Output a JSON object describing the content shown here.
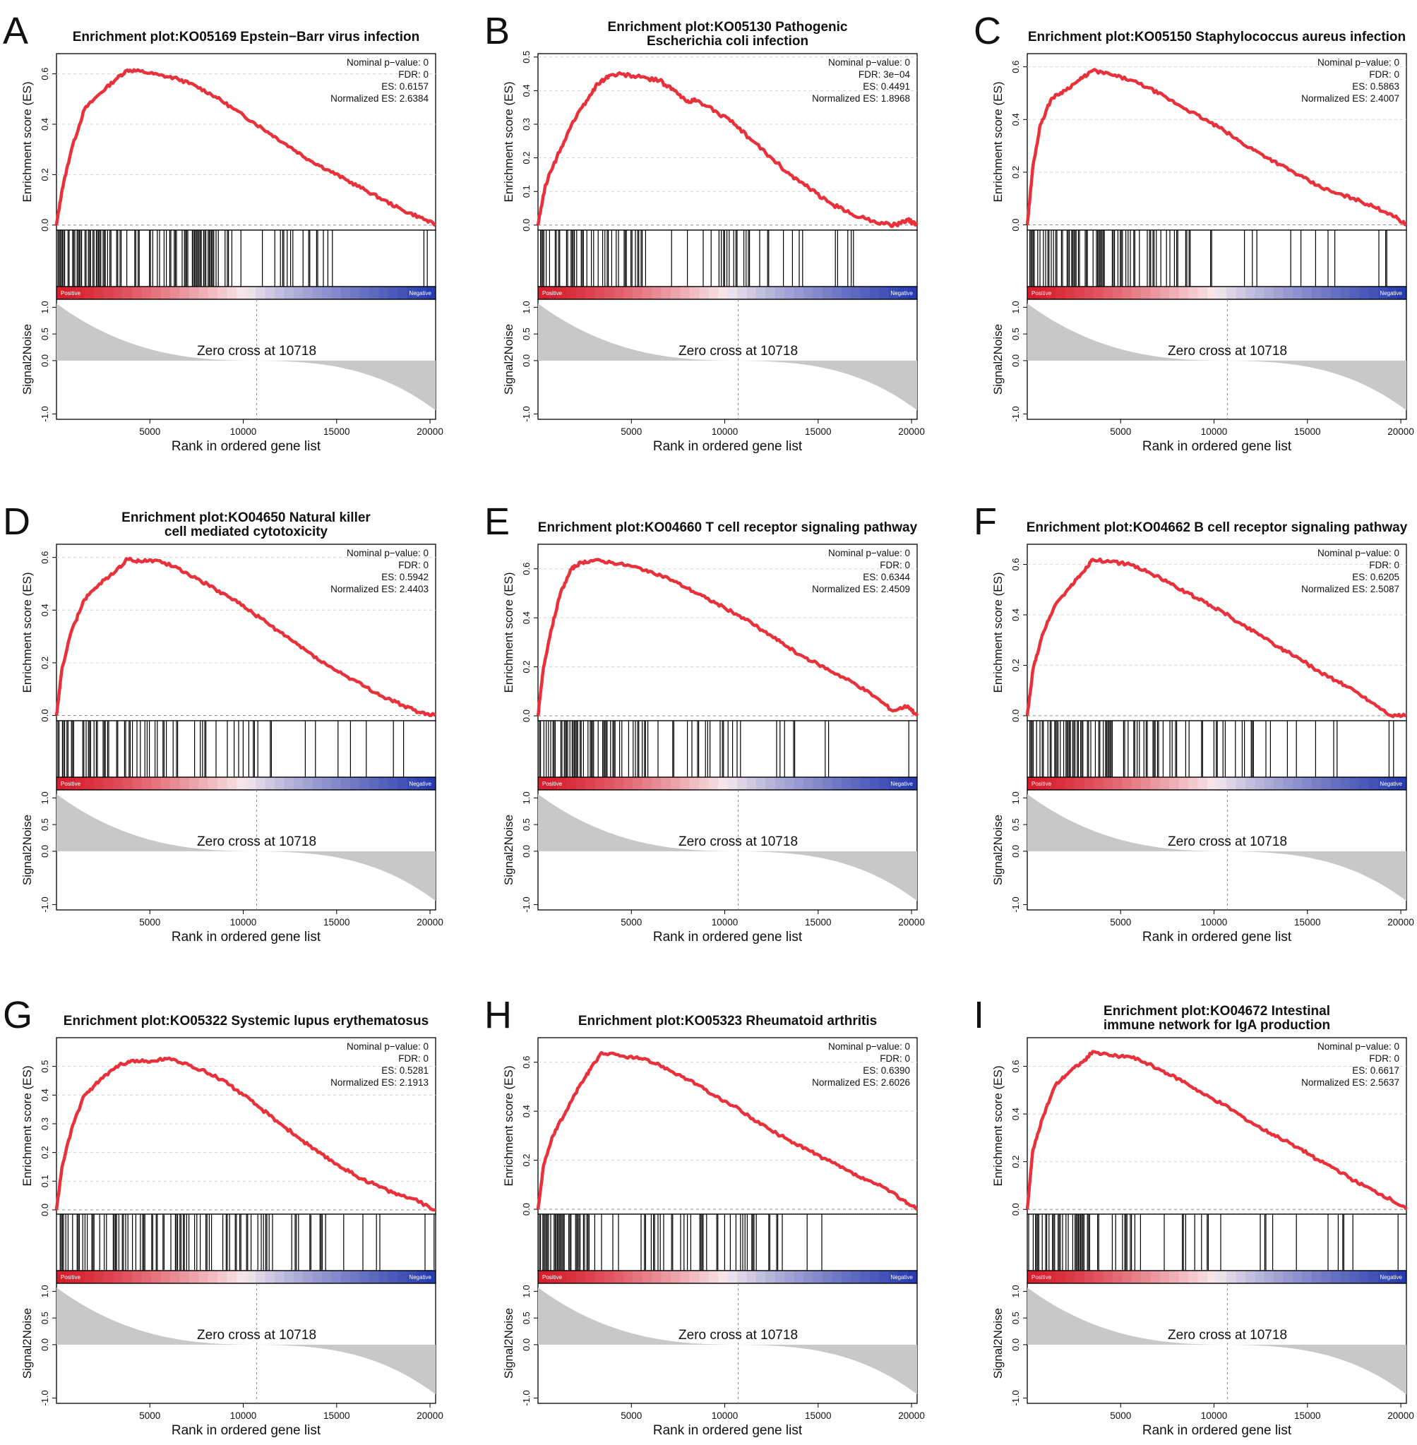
{
  "figure": {
    "zero_cross_label": "Zero cross at 10718",
    "x_axis_label": "Rank in ordered gene list",
    "es_axis_label": "Enrichment score (ES)",
    "metric_axis_label": "Signal2Noise",
    "positive_label": "Positive",
    "negative_label": "Negative",
    "x_ticks": [
      5000,
      10000,
      15000,
      20000
    ],
    "metric_ticks": [
      "1.0",
      "0.5",
      "0.0",
      "-1.0"
    ],
    "curve_color": "#e8313a",
    "metric_fill_color": "#c8c8c8"
  },
  "chart_data": [
    {
      "panel": "A",
      "type": "line",
      "title": [
        "Enrichment plot:KO05169 Epstein−Barr virus infection"
      ],
      "stats": [
        "Nominal p−value: 0",
        "FDR: 0",
        "ES: 0.6157",
        "Normalized ES: 2.6384"
      ],
      "ylim": [
        -0.02,
        0.68
      ],
      "yticks": [
        "0.0",
        "0.2",
        "0.4",
        "0.6"
      ],
      "es_curve": {
        "x": [
          0,
          300,
          800,
          1500,
          2300,
          3200,
          3800,
          4500,
          5500,
          6500,
          7500,
          8500,
          9500,
          10500,
          11500,
          12500,
          13500,
          14500,
          15500,
          16500,
          17500,
          18500,
          19500,
          20300
        ],
        "y": [
          0.0,
          0.14,
          0.3,
          0.46,
          0.52,
          0.58,
          0.615,
          0.61,
          0.595,
          0.58,
          0.55,
          0.51,
          0.46,
          0.41,
          0.36,
          0.31,
          0.26,
          0.22,
          0.18,
          0.14,
          0.1,
          0.06,
          0.03,
          0.0
        ]
      },
      "hit_density": [
        0.95,
        0.55,
        0.8,
        0.2,
        0.35,
        0.1,
        0.04
      ],
      "xlim": [
        0,
        20300
      ],
      "x_ticks": [
        5000,
        10000,
        15000,
        20000
      ],
      "zero_cross": 10718
    },
    {
      "panel": "B",
      "type": "line",
      "title": [
        "Enrichment plot:KO05130 Pathogenic",
        "Escherichia coli infection"
      ],
      "stats": [
        "Nominal p−value: 0",
        "FDR: 3e−04",
        "ES: 0.4491",
        "Normalized ES: 1.8968"
      ],
      "ylim": [
        -0.015,
        0.51
      ],
      "yticks": [
        "0.0",
        "0.1",
        "0.2",
        "0.3",
        "0.4",
        "0.5"
      ],
      "es_curve": {
        "x": [
          0,
          400,
          1000,
          1800,
          2600,
          3200,
          3800,
          4500,
          5500,
          6500,
          7300,
          7900,
          8500,
          9500,
          10500,
          11500,
          12500,
          13500,
          14500,
          15500,
          16500,
          17500,
          18500,
          19200,
          19800,
          20300
        ],
        "y": [
          0.0,
          0.12,
          0.2,
          0.3,
          0.37,
          0.42,
          0.445,
          0.449,
          0.44,
          0.43,
          0.4,
          0.37,
          0.37,
          0.34,
          0.3,
          0.25,
          0.2,
          0.15,
          0.11,
          0.07,
          0.04,
          0.02,
          0.005,
          0.0,
          0.015,
          0.0
        ]
      },
      "hit_density": [
        0.9,
        0.6,
        0.1,
        0.55,
        0.3,
        0.15,
        0.05
      ],
      "xlim": [
        0,
        20300
      ],
      "x_ticks": [
        5000,
        10000,
        15000,
        20000
      ],
      "zero_cross": 10718
    },
    {
      "panel": "C",
      "type": "line",
      "title": [
        "Enrichment plot:KO05150 Staphylococcus aureus infection"
      ],
      "stats": [
        "Nominal p−value: 0",
        "FDR: 0",
        "ES: 0.5863",
        "Normalized ES: 2.4007"
      ],
      "ylim": [
        -0.02,
        0.65
      ],
      "yticks": [
        "0.0",
        "0.2",
        "0.4",
        "0.6"
      ],
      "es_curve": {
        "x": [
          0,
          300,
          700,
          1300,
          2000,
          2800,
          3500,
          4500,
          5500,
          6500,
          7500,
          8500,
          9500,
          10500,
          11500,
          12500,
          13500,
          14500,
          15500,
          16500,
          17500,
          18500,
          19500,
          20300
        ],
        "y": [
          0.0,
          0.22,
          0.38,
          0.48,
          0.51,
          0.55,
          0.586,
          0.57,
          0.55,
          0.52,
          0.48,
          0.44,
          0.4,
          0.36,
          0.31,
          0.27,
          0.23,
          0.19,
          0.15,
          0.12,
          0.1,
          0.07,
          0.04,
          0.0
        ]
      },
      "hit_density": [
        0.95,
        0.65,
        0.45,
        0.3,
        0.2,
        0.1,
        0.04
      ],
      "xlim": [
        0,
        20300
      ],
      "x_ticks": [
        5000,
        10000,
        15000,
        20000
      ],
      "zero_cross": 10718
    },
    {
      "panel": "D",
      "type": "line",
      "title": [
        "Enrichment plot:KO04650 Natural killer",
        "cell mediated cytotoxicity"
      ],
      "stats": [
        "Nominal p−value: 0",
        "FDR: 0",
        "ES: 0.5942",
        "Normalized ES: 2.4403"
      ],
      "ylim": [
        -0.02,
        0.65
      ],
      "yticks": [
        "0.0",
        "0.2",
        "0.4",
        "0.6"
      ],
      "es_curve": {
        "x": [
          0,
          300,
          800,
          1500,
          2300,
          3200,
          3800,
          4500,
          5300,
          6500,
          7500,
          8500,
          9500,
          10500,
          11500,
          12500,
          13500,
          14500,
          15500,
          16500,
          17500,
          18500,
          19500,
          20300
        ],
        "y": [
          0.0,
          0.18,
          0.32,
          0.44,
          0.5,
          0.55,
          0.594,
          0.585,
          0.59,
          0.56,
          0.52,
          0.48,
          0.44,
          0.39,
          0.34,
          0.29,
          0.24,
          0.19,
          0.15,
          0.11,
          0.07,
          0.04,
          0.01,
          0.0
        ]
      },
      "hit_density": [
        0.95,
        0.5,
        0.4,
        0.3,
        0.2,
        0.12,
        0.04
      ],
      "xlim": [
        0,
        20300
      ],
      "x_ticks": [
        5000,
        10000,
        15000,
        20000
      ],
      "zero_cross": 10718
    },
    {
      "panel": "E",
      "type": "line",
      "title": [
        "Enrichment plot:KO04660 T cell receptor signaling pathway"
      ],
      "stats": [
        "Nominal p−value: 0",
        "FDR: 0",
        "ES: 0.6344",
        "Normalized ES: 2.4509"
      ],
      "ylim": [
        -0.02,
        0.7
      ],
      "yticks": [
        "0.0",
        "0.2",
        "0.4",
        "0.6"
      ],
      "es_curve": {
        "x": [
          0,
          300,
          700,
          1200,
          1800,
          2300,
          3000,
          4000,
          5000,
          6000,
          7000,
          8000,
          9000,
          10000,
          11000,
          12000,
          13000,
          14000,
          15000,
          16000,
          17000,
          18000,
          19000,
          19800,
          20300
        ],
        "y": [
          0.0,
          0.2,
          0.35,
          0.5,
          0.6,
          0.625,
          0.634,
          0.625,
          0.61,
          0.59,
          0.56,
          0.52,
          0.48,
          0.44,
          0.4,
          0.35,
          0.3,
          0.25,
          0.21,
          0.17,
          0.13,
          0.08,
          0.02,
          0.04,
          0.0
        ]
      },
      "hit_density": [
        0.95,
        0.55,
        0.25,
        0.3,
        0.2,
        0.08,
        0.05
      ],
      "xlim": [
        0,
        20300
      ],
      "x_ticks": [
        5000,
        10000,
        15000,
        20000
      ],
      "zero_cross": 10718
    },
    {
      "panel": "F",
      "type": "line",
      "title": [
        "Enrichment plot:KO04662 B cell receptor signaling pathway"
      ],
      "stats": [
        "Nominal p−value: 0",
        "FDR: 0",
        "ES: 0.6205",
        "Normalized ES: 2.5087"
      ],
      "ylim": [
        -0.02,
        0.68
      ],
      "yticks": [
        "0.0",
        "0.2",
        "0.4",
        "0.6"
      ],
      "es_curve": {
        "x": [
          0,
          300,
          800,
          1500,
          2300,
          3000,
          3500,
          4500,
          5500,
          6500,
          7500,
          8500,
          9500,
          10500,
          11500,
          12500,
          13500,
          14500,
          15500,
          16500,
          17500,
          18500,
          19500,
          20300
        ],
        "y": [
          0.0,
          0.18,
          0.32,
          0.44,
          0.51,
          0.57,
          0.62,
          0.61,
          0.6,
          0.57,
          0.53,
          0.49,
          0.45,
          0.41,
          0.36,
          0.32,
          0.27,
          0.23,
          0.18,
          0.14,
          0.1,
          0.05,
          0.0,
          0.0
        ]
      },
      "hit_density": [
        0.95,
        0.5,
        0.55,
        0.35,
        0.25,
        0.1,
        0.04
      ],
      "xlim": [
        0,
        20300
      ],
      "x_ticks": [
        5000,
        10000,
        15000,
        20000
      ],
      "zero_cross": 10718
    },
    {
      "panel": "G",
      "type": "line",
      "title": [
        "Enrichment plot:KO05322 Systemic lupus erythematosus"
      ],
      "stats": [
        "Nominal p−value: 0",
        "FDR: 0",
        "ES: 0.5281",
        "Normalized ES: 2.1913"
      ],
      "ylim": [
        -0.015,
        0.6
      ],
      "yticks": [
        "0.0",
        "0.1",
        "0.2",
        "0.3",
        "0.4",
        "0.5"
      ],
      "es_curve": {
        "x": [
          0,
          300,
          800,
          1500,
          2300,
          3200,
          4000,
          5000,
          5800,
          7000,
          8000,
          9000,
          10000,
          11000,
          12000,
          13000,
          14000,
          15000,
          16000,
          17000,
          18000,
          19000,
          20300
        ],
        "y": [
          0.0,
          0.15,
          0.28,
          0.4,
          0.45,
          0.5,
          0.52,
          0.515,
          0.528,
          0.51,
          0.48,
          0.45,
          0.4,
          0.35,
          0.3,
          0.25,
          0.2,
          0.16,
          0.12,
          0.09,
          0.06,
          0.04,
          0.0
        ]
      },
      "hit_density": [
        0.9,
        0.7,
        0.55,
        0.4,
        0.35,
        0.15,
        0.05
      ],
      "xlim": [
        0,
        20300
      ],
      "x_ticks": [
        5000,
        10000,
        15000,
        20000
      ],
      "zero_cross": 10718
    },
    {
      "panel": "H",
      "type": "line",
      "title": [
        "Enrichment plot:KO05323 Rheumatoid arthritis"
      ],
      "stats": [
        "Nominal p−value: 0",
        "FDR: 0",
        "ES: 0.6390",
        "Normalized ES: 2.6026"
      ],
      "ylim": [
        -0.02,
        0.7
      ],
      "yticks": [
        "0.0",
        "0.2",
        "0.4",
        "0.6"
      ],
      "es_curve": {
        "x": [
          0,
          300,
          800,
          1500,
          2200,
          2800,
          3400,
          4500,
          5500,
          6500,
          7500,
          8500,
          9500,
          10500,
          11500,
          12500,
          13500,
          14500,
          15500,
          16500,
          17500,
          18500,
          19500,
          20300
        ],
        "y": [
          0.0,
          0.18,
          0.3,
          0.4,
          0.5,
          0.57,
          0.639,
          0.625,
          0.615,
          0.59,
          0.55,
          0.51,
          0.46,
          0.42,
          0.37,
          0.32,
          0.28,
          0.24,
          0.2,
          0.16,
          0.12,
          0.09,
          0.04,
          0.0
        ]
      },
      "hit_density": [
        0.98,
        0.3,
        0.45,
        0.35,
        0.2,
        0.05,
        0.03
      ],
      "xlim": [
        0,
        20300
      ],
      "x_ticks": [
        5000,
        10000,
        15000,
        20000
      ],
      "zero_cross": 10718
    },
    {
      "panel": "I",
      "type": "line",
      "title": [
        "Enrichment plot:KO04672 Intestinal",
        "immune network for IgA production"
      ],
      "stats": [
        "Nominal p−value: 0",
        "FDR: 0",
        "ES: 0.6617",
        "Normalized ES: 2.5637"
      ],
      "ylim": [
        -0.02,
        0.72
      ],
      "yticks": [
        "0.0",
        "0.2",
        "0.4",
        "0.6"
      ],
      "es_curve": {
        "x": [
          0,
          300,
          800,
          1500,
          2300,
          3000,
          3500,
          4500,
          5500,
          6500,
          7500,
          8500,
          9500,
          10500,
          11500,
          12500,
          13500,
          14500,
          15500,
          16500,
          17500,
          18500,
          19500,
          20300
        ],
        "y": [
          0.0,
          0.25,
          0.38,
          0.52,
          0.58,
          0.62,
          0.662,
          0.645,
          0.64,
          0.61,
          0.57,
          0.53,
          0.48,
          0.44,
          0.39,
          0.34,
          0.3,
          0.26,
          0.21,
          0.17,
          0.12,
          0.08,
          0.04,
          0.0
        ]
      },
      "hit_density": [
        0.95,
        0.6,
        0.2,
        0.15,
        0.1,
        0.05,
        0.03
      ],
      "xlim": [
        0,
        20300
      ],
      "x_ticks": [
        5000,
        10000,
        15000,
        20000
      ],
      "zero_cross": 10718
    }
  ]
}
